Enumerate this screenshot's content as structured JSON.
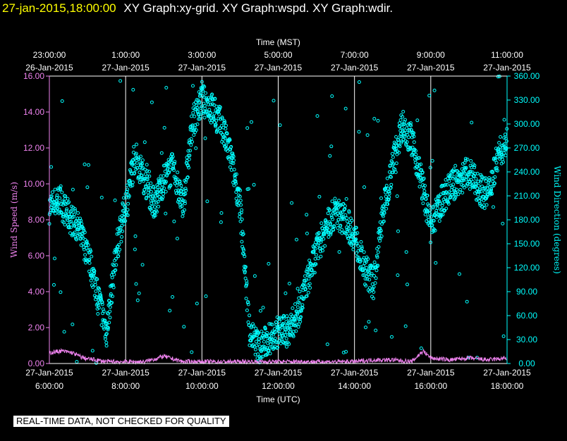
{
  "header": {
    "datetime": "27-jan-2015,18:00:00",
    "graphs": "XY Graph:xy-grid.  XY Graph:wspd.  XY Graph:wdir."
  },
  "notice": "REAL-TIME DATA, NOT CHECKED FOR QUALITY",
  "colors": {
    "wspd": "#ee82ee",
    "wdir": "#00ffff",
    "date": "#ffff00",
    "axis": "#ffffff",
    "grid": "#ffffff"
  },
  "chart_data": {
    "type": "scatter",
    "top_axis": {
      "label": "Time (MST)",
      "ticks": [
        {
          "time": "23:00:00",
          "date": "26-Jan-2015"
        },
        {
          "time": "1:00:00",
          "date": "27-Jan-2015"
        },
        {
          "time": "3:00:00",
          "date": "27-Jan-2015"
        },
        {
          "time": "5:00:00",
          "date": "27-Jan-2015"
        },
        {
          "time": "7:00:00",
          "date": "27-Jan-2015"
        },
        {
          "time": "9:00:00",
          "date": "27-Jan-2015"
        },
        {
          "time": "11:00:00",
          "date": "27-Jan-2015"
        }
      ]
    },
    "bottom_axis": {
      "label": "Time (UTC)",
      "ticks": [
        {
          "date": "27-Jan-2015",
          "time": "6:00:00"
        },
        {
          "date": "27-Jan-2015",
          "time": "8:00:00"
        },
        {
          "date": "27-Jan-2015",
          "time": "10:00:00"
        },
        {
          "date": "27-Jan-2015",
          "time": "12:00:00"
        },
        {
          "date": "27-Jan-2015",
          "time": "14:00:00"
        },
        {
          "date": "27-Jan-2015",
          "time": "16:00:00"
        },
        {
          "date": "27-Jan-2015",
          "time": "18:00:00"
        }
      ]
    },
    "xlim_utc_hours": [
      6,
      18
    ],
    "left_axis": {
      "label": "Wind Speed (m/s)",
      "ylim": [
        0,
        16
      ],
      "ticks": [
        "0.00",
        "2.00",
        "4.00",
        "6.00",
        "8.00",
        "10.00",
        "12.00",
        "14.00",
        "16.00"
      ]
    },
    "right_axis": {
      "label": "Wind Direction (degrees)",
      "ylim": [
        0,
        360
      ],
      "ticks": [
        "0.00",
        "30.00",
        "60.00",
        "90.00",
        "120.00",
        "150.00",
        "180.00",
        "210.00",
        "240.00",
        "270.00",
        "300.00",
        "330.00",
        "360.00"
      ]
    },
    "grid": true,
    "series": [
      {
        "axis": "left",
        "x": [
          6.0,
          6.3,
          6.6,
          6.9,
          7.2,
          7.5,
          8.0,
          8.5,
          9.0,
          9.5,
          10.0,
          10.5,
          11.0,
          11.5,
          12.0,
          12.5,
          13.0,
          13.5,
          14.0,
          14.5,
          15.0,
          15.5,
          15.8,
          16.0,
          16.5,
          17.0,
          17.5,
          18.0
        ],
        "y": [
          0.6,
          0.7,
          0.6,
          0.3,
          0.2,
          0.1,
          0.1,
          0.1,
          0.4,
          0.1,
          0.1,
          0.1,
          0.1,
          0.1,
          0.1,
          0.1,
          0.1,
          0.1,
          0.1,
          0.2,
          0.2,
          0.1,
          0.7,
          0.3,
          0.2,
          0.3,
          0.2,
          0.3
        ]
      },
      {
        "axis": "right",
        "x": [
          6.0,
          6.25,
          6.5,
          6.75,
          7.0,
          7.25,
          7.5,
          7.75,
          8.0,
          8.25,
          8.5,
          8.75,
          9.0,
          9.25,
          9.5,
          9.75,
          10.0,
          10.25,
          10.5,
          10.75,
          11.0,
          11.25,
          11.5,
          11.75,
          12.0,
          12.25,
          12.5,
          12.75,
          13.0,
          13.25,
          13.5,
          13.75,
          14.0,
          14.25,
          14.5,
          14.75,
          15.0,
          15.25,
          15.5,
          15.75,
          16.0,
          16.25,
          16.5,
          16.75,
          17.0,
          17.25,
          17.5,
          17.75,
          18.0
        ],
        "y": [
          195,
          205,
          185,
          170,
          140,
          90,
          40,
          140,
          200,
          260,
          230,
          200,
          230,
          245,
          195,
          300,
          330,
          320,
          300,
          260,
          200,
          40,
          20,
          30,
          40,
          40,
          60,
          100,
          140,
          170,
          190,
          180,
          160,
          120,
          100,
          190,
          250,
          300,
          280,
          230,
          170,
          200,
          220,
          230,
          240,
          220,
          210,
          260,
          280
        ]
      }
    ]
  }
}
